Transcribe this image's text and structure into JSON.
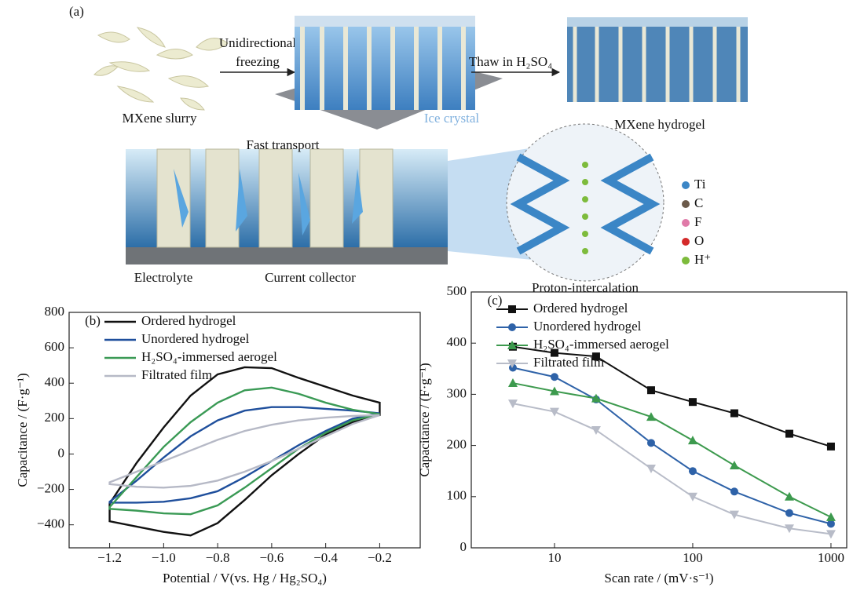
{
  "panel_a": {
    "label": "(a)",
    "slurry": "MXene slurry",
    "freezing_1": "Unidirectional",
    "freezing_2": "freezing",
    "thaw": "Thaw in H₂SO₄",
    "ice": "Ice crystal",
    "hydrogel": "MXene hydrogel",
    "transport": "Fast transport",
    "electrolyte": "Electrolyte",
    "collector": "Current collector",
    "proton": "Proton-intercalation",
    "atoms": [
      {
        "symbol": "Ti",
        "color": "#3b86c6"
      },
      {
        "symbol": "C",
        "color": "#6b5a4a"
      },
      {
        "symbol": "F",
        "color": "#e07aa8"
      },
      {
        "symbol": "O",
        "color": "#d42a2a"
      },
      {
        "symbol": "H⁺",
        "color": "#7dbb3c"
      }
    ]
  },
  "chart_data": [
    {
      "type": "cv",
      "panel_label": "(b)",
      "x_label": "Potential / V(vs. Hg / Hg₂SO₄)",
      "y_label": "Capacitance / (F·g⁻¹)",
      "xlim": [
        -1.35,
        -0.05
      ],
      "ylim": [
        -530,
        800
      ],
      "xticks": [
        {
          "value": -1.2,
          "label": "−1.2"
        },
        {
          "value": -1.0,
          "label": "−1.0"
        },
        {
          "value": -0.8,
          "label": "−0.8"
        },
        {
          "value": -0.6,
          "label": "−0.6"
        },
        {
          "value": -0.4,
          "label": "−0.4"
        },
        {
          "value": -0.2,
          "label": "−0.2"
        }
      ],
      "yticks": [
        {
          "value": -400,
          "label": "−400"
        },
        {
          "value": -200,
          "label": "−200"
        },
        0,
        200,
        400,
        600,
        800
      ],
      "legend": "upper left",
      "series": [
        {
          "name": "Ordered hydrogel",
          "color": "#111111",
          "x": [
            -1.2,
            -1.1,
            -1.0,
            -0.9,
            -0.8,
            -0.7,
            -0.6,
            -0.5,
            -0.4,
            -0.3,
            -0.2,
            -0.2,
            -0.3,
            -0.4,
            -0.5,
            -0.6,
            -0.7,
            -0.8,
            -0.9,
            -1.0,
            -1.1,
            -1.2
          ],
          "values": [
            -280,
            -50,
            150,
            330,
            450,
            490,
            485,
            430,
            380,
            330,
            290,
            220,
            180,
            110,
            0,
            -120,
            -260,
            -390,
            -460,
            -440,
            -410,
            -380
          ]
        },
        {
          "name": "Unordered hydrogel",
          "color": "#1f4f9c",
          "x": [
            -1.2,
            -1.1,
            -1.0,
            -0.9,
            -0.8,
            -0.7,
            -0.6,
            -0.5,
            -0.4,
            -0.3,
            -0.2,
            -0.3,
            -0.4,
            -0.5,
            -0.6,
            -0.7,
            -0.8,
            -0.9,
            -1.0,
            -1.1,
            -1.2
          ],
          "values": [
            -270,
            -150,
            -20,
            100,
            190,
            245,
            265,
            265,
            255,
            245,
            230,
            200,
            130,
            50,
            -40,
            -130,
            -210,
            -250,
            -270,
            -275,
            -275
          ]
        },
        {
          "name": "H₂SO₄-immersed aerogel",
          "color": "#3a9a55",
          "x": [
            -1.2,
            -1.1,
            -1.0,
            -0.9,
            -0.8,
            -0.7,
            -0.6,
            -0.5,
            -0.4,
            -0.3,
            -0.2,
            -0.3,
            -0.4,
            -0.5,
            -0.6,
            -0.7,
            -0.8,
            -0.9,
            -1.0,
            -1.1,
            -1.2
          ],
          "values": [
            -300,
            -130,
            40,
            180,
            290,
            360,
            375,
            340,
            290,
            250,
            225,
            190,
            120,
            30,
            -80,
            -190,
            -290,
            -340,
            -335,
            -320,
            -310
          ]
        },
        {
          "name": "Filtrated film",
          "color": "#b6b9c6",
          "x": [
            -1.2,
            -1.1,
            -1.0,
            -0.9,
            -0.8,
            -0.7,
            -0.6,
            -0.5,
            -0.4,
            -0.3,
            -0.2,
            -0.3,
            -0.4,
            -0.5,
            -0.6,
            -0.7,
            -0.8,
            -0.9,
            -1.0,
            -1.1,
            -1.2
          ],
          "values": [
            -160,
            -100,
            -40,
            20,
            80,
            130,
            165,
            190,
            205,
            215,
            220,
            170,
            100,
            30,
            -40,
            -100,
            -150,
            -180,
            -190,
            -185,
            -170
          ]
        }
      ]
    },
    {
      "type": "line",
      "panel_label": "(c)",
      "x_label": "Scan rate / (mV·s⁻¹)",
      "y_label": "Capacitance / (F·g⁻¹)",
      "xscale": "log",
      "xlim": [
        2.5,
        1300
      ],
      "ylim": [
        0,
        500
      ],
      "xticks": [
        10,
        100,
        1000
      ],
      "yticks": [
        0,
        100,
        200,
        300,
        400,
        500
      ],
      "legend": "upper right",
      "x": [
        5,
        10,
        20,
        50,
        100,
        200,
        500,
        1000
      ],
      "series": [
        {
          "name": "Ordered hydrogel",
          "color": "#111111",
          "marker": "square",
          "values": [
            393,
            381,
            374,
            308,
            285,
            263,
            223,
            198
          ]
        },
        {
          "name": "Unordered hydrogel",
          "color": "#2e62a8",
          "marker": "circle",
          "values": [
            352,
            334,
            290,
            205,
            150,
            110,
            68,
            47
          ]
        },
        {
          "name": "H₂SO₄-immersed aerogel",
          "color": "#3d9a4e",
          "marker": "triangle-up",
          "values": [
            322,
            306,
            292,
            256,
            210,
            161,
            100,
            60
          ]
        },
        {
          "name": "Filtrated film",
          "color": "#b8bcc8",
          "marker": "triangle-down",
          "values": [
            282,
            266,
            230,
            155,
            100,
            65,
            38,
            27
          ]
        }
      ]
    }
  ]
}
